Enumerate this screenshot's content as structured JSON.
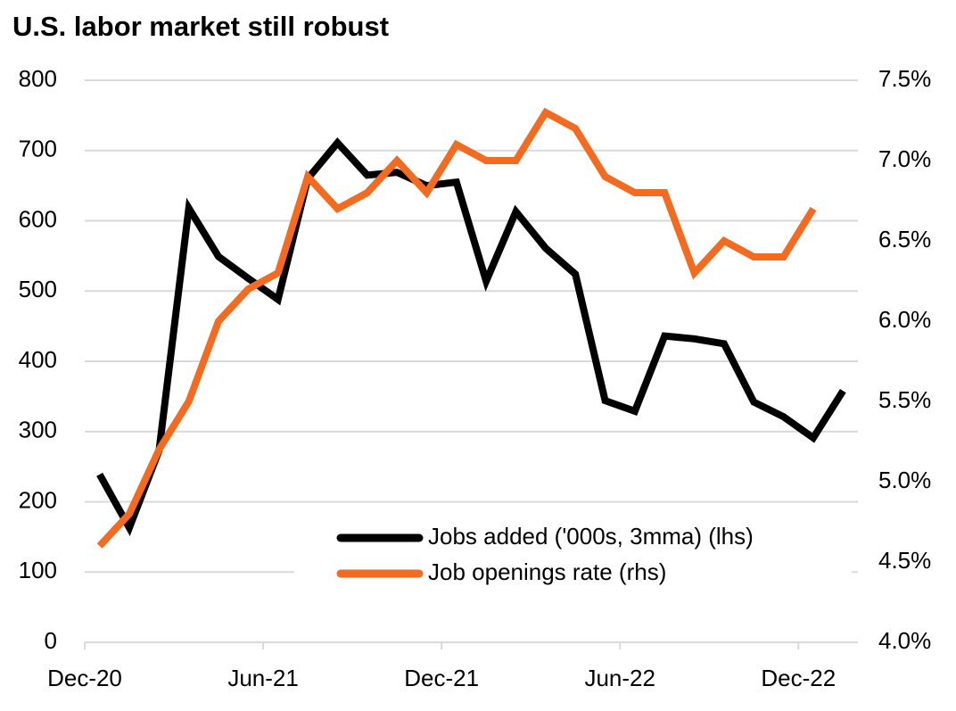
{
  "chart_data": {
    "type": "line",
    "title": "U.S. labor market still robust",
    "categories": [
      "Dec-20",
      null,
      null,
      null,
      null,
      null,
      "Jun-21",
      null,
      null,
      null,
      null,
      null,
      "Dec-21",
      null,
      null,
      null,
      null,
      null,
      "Jun-22",
      null,
      null,
      null,
      null,
      null,
      "Dec-22",
      null
    ],
    "series": [
      {
        "name": "Jobs added ('000s, 3mma) (lhs)",
        "color": "#000000",
        "axis": "y",
        "values": [
          239,
          163,
          273,
          618,
          549,
          518,
          488,
          660,
          711,
          665,
          669,
          650,
          655,
          514,
          613,
          561,
          524,
          344,
          329,
          436,
          432,
          425,
          342,
          321,
          291,
          358
        ]
      },
      {
        "name": "Job openings rate (rhs)",
        "color": "#f26b21",
        "axis": "y2",
        "values": [
          4.6,
          4.8,
          5.2,
          5.5,
          6.0,
          6.2,
          6.3,
          6.9,
          6.7,
          6.8,
          7.0,
          6.8,
          7.1,
          7.0,
          7.0,
          7.3,
          7.2,
          6.9,
          6.8,
          6.8,
          6.3,
          6.5,
          6.4,
          6.4,
          6.7,
          null
        ]
      }
    ],
    "ylim": [
      0,
      800
    ],
    "yticks": [
      0,
      100,
      200,
      300,
      400,
      500,
      600,
      700,
      800
    ],
    "y2lim": [
      4.0,
      7.5
    ],
    "y2ticks": [
      {
        "value": 4.0,
        "label": "4.0%"
      },
      {
        "value": 4.5,
        "label": "4.5%"
      },
      {
        "value": 5.0,
        "label": "5.0%"
      },
      {
        "value": 5.5,
        "label": "5.5%"
      },
      {
        "value": 6.0,
        "label": "6.0%"
      },
      {
        "value": 6.5,
        "label": "6.5%"
      },
      {
        "value": 7.0,
        "label": "7.0%"
      },
      {
        "value": 7.5,
        "label": "7.5%"
      }
    ],
    "grid": true,
    "legend": "lower right"
  }
}
